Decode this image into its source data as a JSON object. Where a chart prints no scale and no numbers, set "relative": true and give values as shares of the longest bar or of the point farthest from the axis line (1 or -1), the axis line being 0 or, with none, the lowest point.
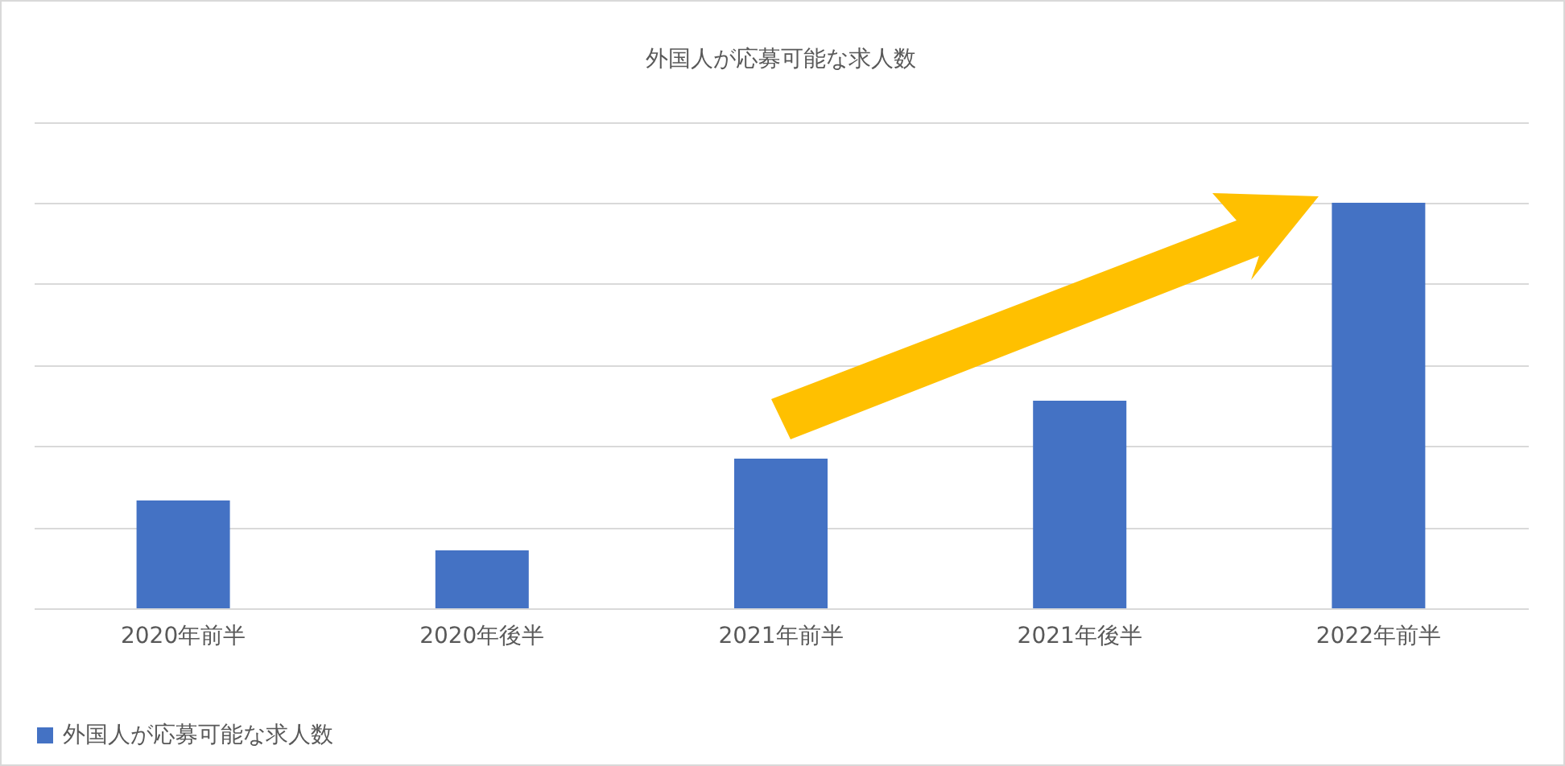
{
  "chart_data": {
    "type": "bar",
    "title": "外国人が応募可能な求人数",
    "categories": [
      "2020年前半",
      "2020年後半",
      "2021年前半",
      "2021年後半",
      "2022年前半"
    ],
    "series": [
      {
        "name": "外国人が応募可能な求人数",
        "color": "#4472c4",
        "values": [
          0.266,
          0.143,
          0.369,
          0.512,
          1
        ]
      }
    ],
    "relative": true,
    "grid": "y",
    "legend": "bottom"
  }
}
